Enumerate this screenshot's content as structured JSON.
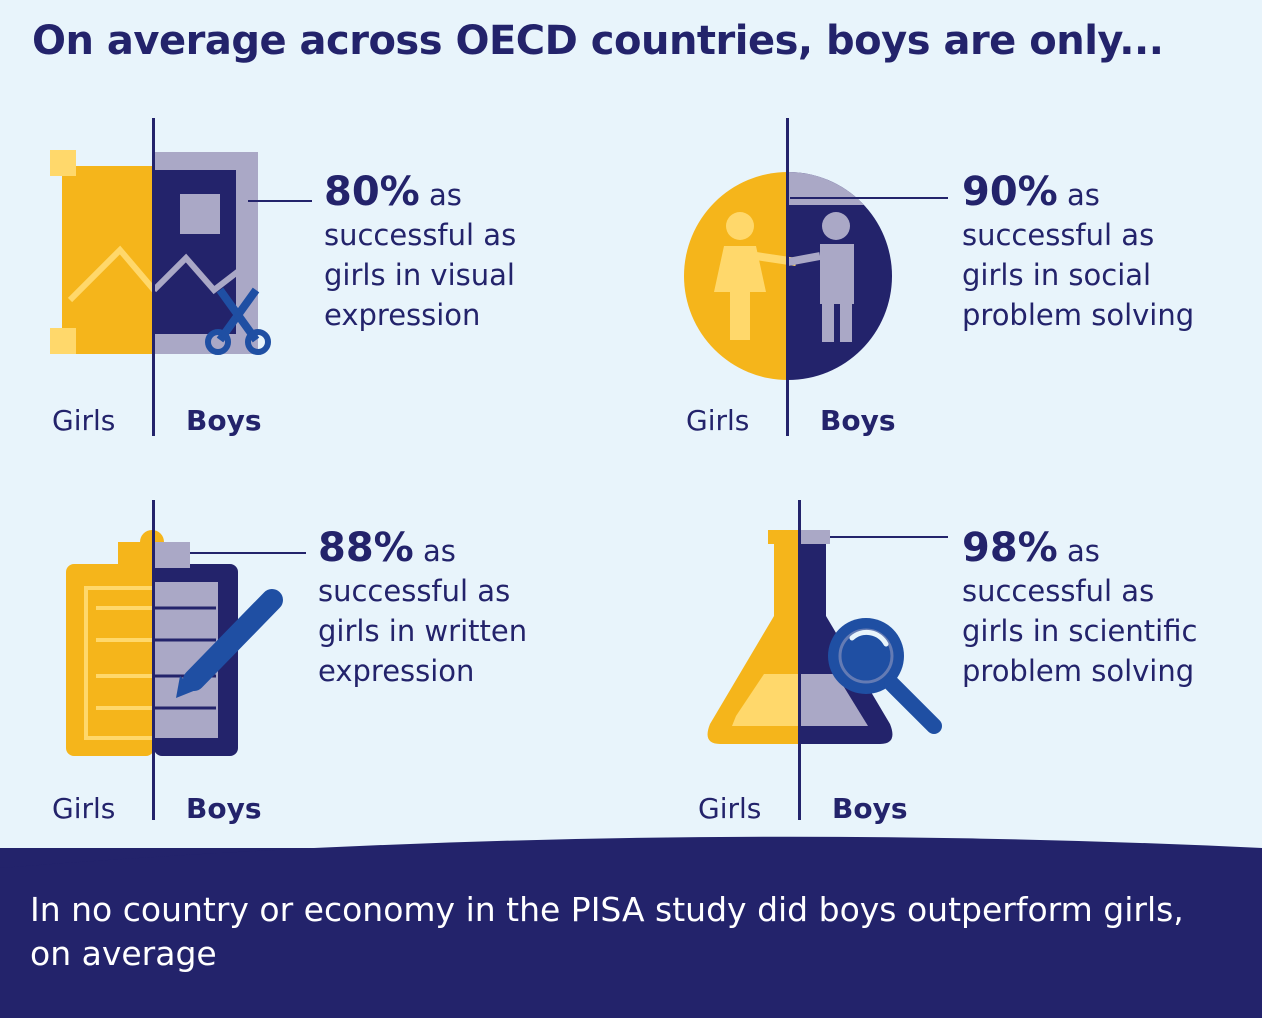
{
  "title": "On average across OECD countries, boys are only...",
  "girls_label": "Girls",
  "boys_label": "Boys",
  "panels": [
    {
      "percent": "80%",
      "as": "as",
      "lines": [
        "successful as",
        "girls in visual",
        "expression"
      ]
    },
    {
      "percent": "90%",
      "as": "as",
      "lines": [
        "successful as",
        "girls in social",
        "problem solving"
      ]
    },
    {
      "percent": "88%",
      "as": "as",
      "lines": [
        "successful as",
        "girls in written",
        "expression"
      ]
    },
    {
      "percent": "98%",
      "as": "as",
      "lines": [
        "successful as",
        "girls in scientific",
        "problem solving"
      ]
    }
  ],
  "footer": "In no country or economy in the PISA study did boys outperform girls, on average",
  "colors": {
    "navy": "#23236b",
    "yellow": "#f5b51b",
    "pale_yellow": "#ffd86b",
    "lavender": "#aaa8c6",
    "blue": "#1f4fa3",
    "background": "#e8f4fb"
  },
  "icons": [
    "picture-scissors-icon",
    "people-handshake-icon",
    "clipboard-pen-icon",
    "flask-magnifier-icon"
  ]
}
